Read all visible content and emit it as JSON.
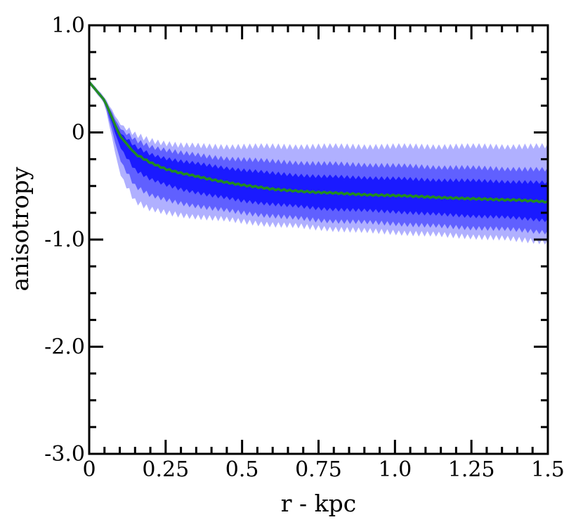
{
  "chart_data": {
    "type": "area",
    "xlabel": "r - kpc",
    "ylabel": "anisotropy",
    "xlim": [
      0,
      1.5
    ],
    "ylim": [
      -3.0,
      1.0
    ],
    "xticks": [
      0,
      0.25,
      0.5,
      0.75,
      1.0,
      1.25,
      1.5
    ],
    "xtick_labels": [
      "0",
      "0.25",
      "0.5",
      "0.75",
      "1.0",
      "1.25",
      "1.5"
    ],
    "yticks": [
      1.0,
      0,
      -1.0,
      -2.0,
      -3.0
    ],
    "ytick_labels": [
      "1.0",
      "0",
      "-1.0",
      "-2.0",
      "-3.0"
    ],
    "grid": false,
    "colors": {
      "median": "#228b22",
      "band_inner": "#1a1aff",
      "band_middle": "#6060ff",
      "band_outer": "#b0b0ff"
    },
    "x": [
      0,
      0.05,
      0.1,
      0.15,
      0.2,
      0.25,
      0.3,
      0.4,
      0.5,
      0.6,
      0.75,
      0.9,
      1.0,
      1.1,
      1.25,
      1.4,
      1.5
    ],
    "series": [
      {
        "values": [
          0.47,
          0.3,
          -0.03,
          -0.2,
          -0.28,
          -0.34,
          -0.38,
          -0.44,
          -0.49,
          -0.53,
          -0.56,
          -0.58,
          -0.59,
          -0.6,
          -0.62,
          -0.63,
          -0.65
        ]
      }
    ],
    "bands": [
      {
        "lower": [
          0.45,
          0.27,
          -0.38,
          -0.64,
          -0.72,
          -0.75,
          -0.77,
          -0.8,
          -0.83,
          -0.86,
          -0.89,
          -0.92,
          -0.93,
          -0.95,
          -0.97,
          -1.0,
          -1.02
        ],
        "upper": [
          0.49,
          0.33,
          0.08,
          -0.02,
          -0.07,
          -0.1,
          -0.12,
          -0.13,
          -0.13,
          -0.13,
          -0.13,
          -0.13,
          -0.13,
          -0.13,
          -0.13,
          -0.13,
          -0.13
        ]
      },
      {
        "lower": [
          0.46,
          0.28,
          -0.25,
          -0.5,
          -0.59,
          -0.63,
          -0.66,
          -0.71,
          -0.75,
          -0.78,
          -0.82,
          -0.84,
          -0.85,
          -0.87,
          -0.89,
          -0.91,
          -0.93
        ],
        "upper": [
          0.485,
          0.32,
          0.04,
          -0.07,
          -0.13,
          -0.16,
          -0.19,
          -0.23,
          -0.25,
          -0.27,
          -0.29,
          -0.3,
          -0.31,
          -0.32,
          -0.33,
          -0.34,
          -0.35
        ]
      },
      {
        "lower": [
          0.465,
          0.29,
          -0.13,
          -0.35,
          -0.44,
          -0.49,
          -0.53,
          -0.59,
          -0.64,
          -0.67,
          -0.71,
          -0.73,
          -0.74,
          -0.76,
          -0.78,
          -0.8,
          -0.82
        ],
        "upper": [
          0.48,
          0.31,
          0.0,
          -0.13,
          -0.2,
          -0.24,
          -0.27,
          -0.31,
          -0.35,
          -0.38,
          -0.41,
          -0.42,
          -0.43,
          -0.44,
          -0.45,
          -0.46,
          -0.47
        ]
      }
    ]
  }
}
